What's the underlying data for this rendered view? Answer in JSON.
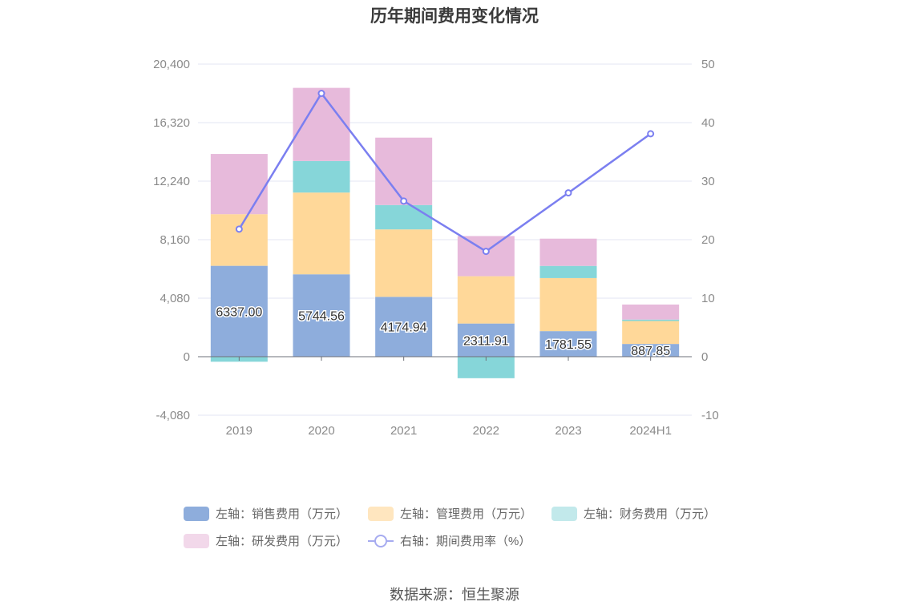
{
  "chart_data": {
    "type": "bar",
    "title": "历年期间费用变化情况",
    "categories": [
      "2019",
      "2020",
      "2021",
      "2022",
      "2023",
      "2024H1"
    ],
    "left_axis": {
      "ticks": [
        "20,400",
        "16,320",
        "12,240",
        "8,160",
        "4,080",
        "0",
        "-4,080"
      ],
      "range": [
        -4080,
        20400
      ]
    },
    "right_axis": {
      "ticks": [
        "50",
        "40",
        "30",
        "20",
        "10",
        "0",
        "-10"
      ],
      "range": [
        -10,
        50
      ]
    },
    "series": [
      {
        "name": "左轴：销售费用（万元）",
        "type": "bar",
        "color": "#8eaddc",
        "values": [
          6337.0,
          5744.56,
          4174.94,
          2311.91,
          1781.55,
          887.85
        ],
        "labels": [
          "6337.00",
          "5744.56",
          "4174.94",
          "2311.91",
          "1781.55",
          "887.85"
        ]
      },
      {
        "name": "左轴：管理费用（万元）",
        "type": "bar",
        "color": "#ffd899",
        "values": [
          3600,
          5700,
          4700,
          3300,
          3700,
          1600
        ]
      },
      {
        "name": "左轴：财务费用（万元）",
        "type": "bar",
        "color": "#86d6d9",
        "values": [
          -350,
          2200,
          1700,
          -1500,
          850,
          100
        ]
      },
      {
        "name": "左轴：研发费用（万元）",
        "type": "bar",
        "color": "#e7badb",
        "values": [
          4200,
          5100,
          4700,
          2800,
          1900,
          1050
        ]
      },
      {
        "name": "右轴：期间费用率（%）",
        "type": "line",
        "axis": "right",
        "color": "#7b7ff0",
        "values": [
          21.8,
          45.0,
          26.6,
          18.0,
          28.0,
          38.1
        ]
      }
    ],
    "legend_position": "bottom",
    "grid": true
  },
  "legend": [
    {
      "label": "左轴：销售费用（万元）",
      "color": "#8eaddc",
      "kind": "bar"
    },
    {
      "label": "左轴：管理费用（万元）",
      "color": "#ffe6bf",
      "kind": "bar"
    },
    {
      "label": "左轴：财务费用（万元）",
      "color": "#c2e9eb",
      "kind": "bar"
    },
    {
      "label": "左轴：研发费用（万元）",
      "color": "#f2d8ea",
      "kind": "bar"
    },
    {
      "label": "右轴：期间费用率（%）",
      "color": "#a6abf0",
      "kind": "line"
    }
  ],
  "source": "数据来源：恒生聚源"
}
